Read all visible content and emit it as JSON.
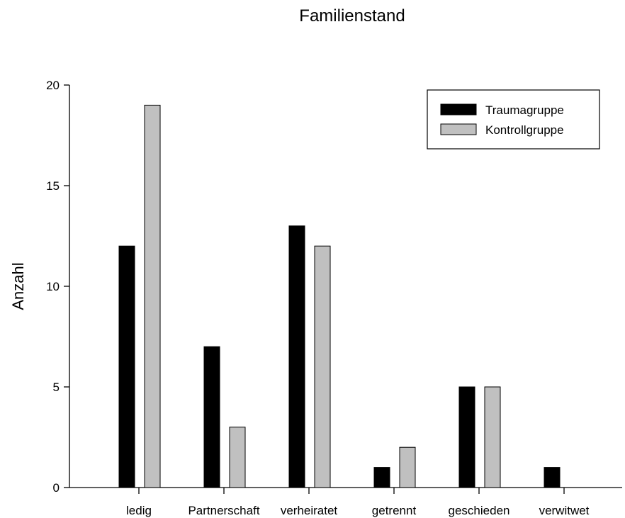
{
  "chart_data": {
    "type": "bar",
    "title": "Familienstand",
    "xlabel": "",
    "ylabel": "Anzahl",
    "ylim": [
      0,
      20
    ],
    "yticks": [
      0,
      5,
      10,
      15,
      20
    ],
    "categories": [
      "ledig",
      "Partnerschaft",
      "verheiratet",
      "getrennt",
      "geschieden",
      "verwitwet"
    ],
    "series": [
      {
        "name": "Traumagruppe",
        "color": "#000000",
        "values": [
          12,
          7,
          13,
          1,
          5,
          1
        ]
      },
      {
        "name": "Kontrollgruppe",
        "color": "#c0c0c0",
        "values": [
          19,
          3,
          12,
          2,
          5,
          0
        ]
      }
    ],
    "legend": {
      "position": "top-right"
    },
    "grid": false
  }
}
